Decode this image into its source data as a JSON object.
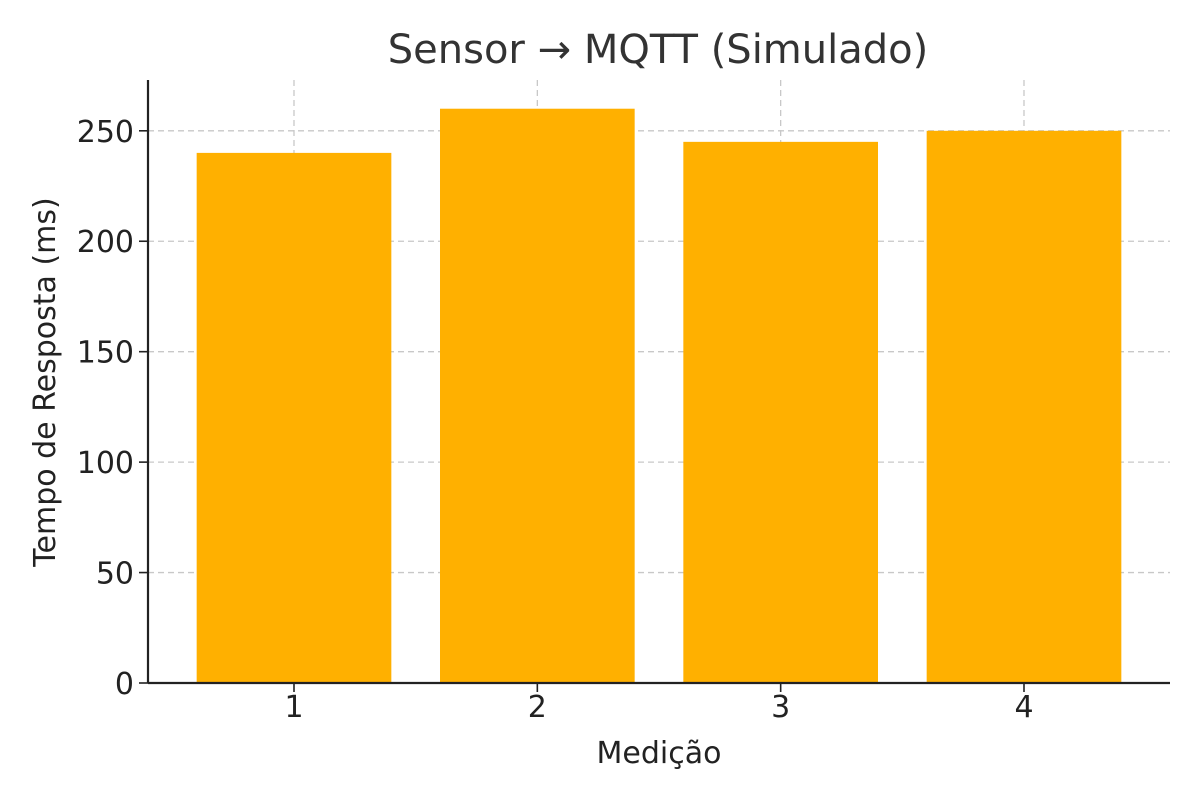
{
  "chart_data": {
    "type": "bar",
    "title": "Sensor → MQTT (Simulado)",
    "xlabel": "Medição",
    "ylabel": "Tempo de Resposta (ms)",
    "categories": [
      "1",
      "2",
      "3",
      "4"
    ],
    "values": [
      240,
      260,
      245,
      250
    ],
    "ylim": [
      0,
      273
    ],
    "yticks": [
      0,
      50,
      100,
      150,
      200,
      250
    ],
    "grid": true,
    "bar_color": "#FFB000"
  }
}
